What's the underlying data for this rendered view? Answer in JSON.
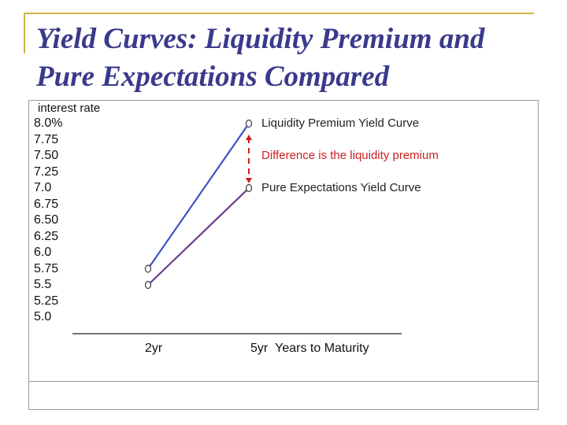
{
  "title": {
    "line1": "Yield Curves: Liquidity Premium and",
    "line2": "Pure Expectations Compared"
  },
  "colors": {
    "title": "#3a3a8c",
    "liquidity_line": "#3c52c8",
    "pure_line": "#6b3a8c",
    "difference_marker": "#cc1f1f",
    "frame": "#c9b64a"
  },
  "chart_data": {
    "type": "line",
    "ylabel": "interest rate",
    "xlabel": "Years to Maturity",
    "ylim": [
      5.0,
      8.0
    ],
    "y_tick_labels": [
      "8.0%",
      "7.75",
      "7.50",
      "7.25",
      "7.0",
      "6.75",
      "6.50",
      "6.25",
      "6.0",
      "5.75",
      "5.5",
      "5.25",
      "5.0"
    ],
    "x_tick_labels": [
      "2yr",
      "5yr"
    ],
    "categories": [
      "2yr",
      "5yr"
    ],
    "series": [
      {
        "name": "Liquidity Premium Yield Curve",
        "values": [
          5.75,
          8.0
        ]
      },
      {
        "name": "Pure Expectations Yield Curve",
        "values": [
          5.5,
          7.0
        ]
      }
    ],
    "annotations": {
      "liquidity_label": "Liquidity Premium Yield Curve",
      "difference_label": "Difference is the liquidity premium",
      "pure_label": "Pure Expectations Yield Curve",
      "point_marker": "o"
    }
  }
}
